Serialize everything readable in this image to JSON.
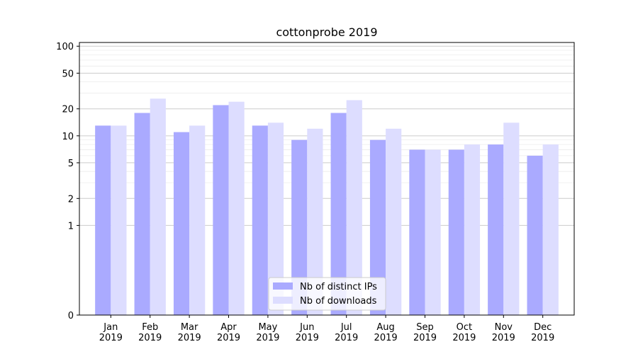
{
  "chart_data": {
    "type": "bar",
    "title": "cottonprobe 2019",
    "xlabel": "",
    "ylabel": "",
    "yscale": "symlog",
    "ylim": [
      0,
      110
    ],
    "yticks": [
      0,
      1,
      2,
      5,
      10,
      20,
      50,
      100
    ],
    "ytick_labels": [
      "0",
      "1",
      "2",
      "5",
      "10",
      "20",
      "50",
      "100"
    ],
    "grid": true,
    "legend_position": "bottom-center",
    "categories": [
      [
        "Jan",
        "2019"
      ],
      [
        "Feb",
        "2019"
      ],
      [
        "Mar",
        "2019"
      ],
      [
        "Apr",
        "2019"
      ],
      [
        "May",
        "2019"
      ],
      [
        "Jun",
        "2019"
      ],
      [
        "Jul",
        "2019"
      ],
      [
        "Aug",
        "2019"
      ],
      [
        "Sep",
        "2019"
      ],
      [
        "Oct",
        "2019"
      ],
      [
        "Nov",
        "2019"
      ],
      [
        "Dec",
        "2019"
      ]
    ],
    "series": [
      {
        "name": "Nb of distinct IPs",
        "color": "#aaaaff",
        "values": [
          13,
          18,
          11,
          22,
          13,
          9,
          18,
          9,
          7,
          7,
          8,
          6
        ]
      },
      {
        "name": "Nb of downloads",
        "color": "#ddddff",
        "values": [
          13,
          26,
          13,
          24,
          14,
          12,
          25,
          12,
          7,
          8,
          14,
          8
        ]
      }
    ]
  }
}
